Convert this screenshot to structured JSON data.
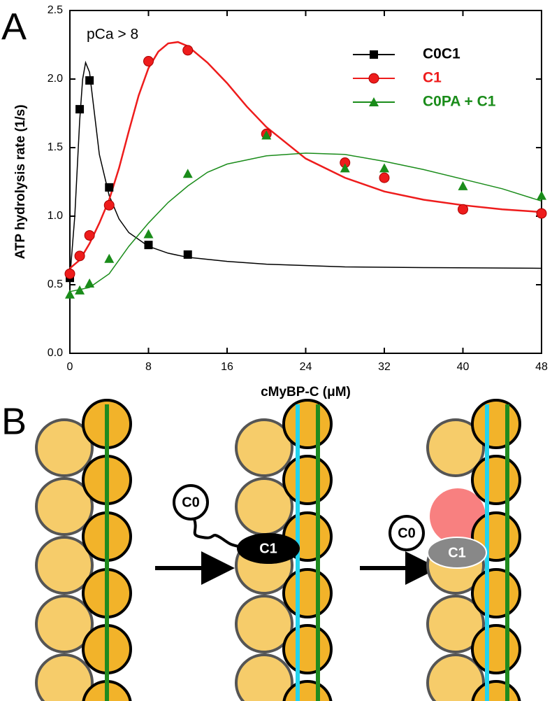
{
  "panel_labels": [
    "A",
    "B"
  ],
  "chart_data": {
    "type": "scatter",
    "annotation": "pCa > 8",
    "x_label": "cMyBP-C (μM)",
    "y_label": "ATP hydrolysis rate (1/s)",
    "xlim": [
      0,
      48
    ],
    "xticks": [
      0,
      8,
      16,
      24,
      32,
      40,
      48
    ],
    "ylim": [
      0,
      2.5
    ],
    "yticks": [
      {
        "value": 0,
        "label": "0.0"
      },
      0.5,
      {
        "value": 1,
        "label": "1.0"
      },
      1.5,
      {
        "value": 2,
        "label": "2.0"
      },
      2.5
    ],
    "legend": "upper right",
    "series": [
      {
        "name": "C0C1",
        "color": "#000000",
        "marker": "square",
        "x": [
          0,
          1,
          2,
          4,
          8,
          12
        ],
        "values": [
          0.55,
          1.78,
          1.99,
          1.21,
          0.79,
          0.72
        ],
        "fit_x": [
          0,
          0.5,
          1,
          1.3,
          1.6,
          2,
          2.5,
          3,
          4,
          5,
          6,
          8,
          10,
          12,
          16,
          20,
          28,
          36,
          48
        ],
        "fit_values": [
          0.55,
          1.0,
          1.7,
          2.0,
          2.12,
          2.05,
          1.75,
          1.45,
          1.15,
          0.98,
          0.88,
          0.78,
          0.73,
          0.7,
          0.67,
          0.65,
          0.63,
          0.625,
          0.62
        ]
      },
      {
        "name": "C1",
        "color": "#ee1c1c",
        "marker": "circle",
        "x": [
          0,
          1,
          2,
          4,
          8,
          12,
          20,
          28,
          32,
          40,
          48
        ],
        "values": [
          0.58,
          0.71,
          0.86,
          1.08,
          2.13,
          2.21,
          1.6,
          1.39,
          1.28,
          1.05,
          1.02
        ],
        "fit_x": [
          0,
          1,
          2,
          3,
          4,
          5,
          6,
          7,
          8,
          9,
          10,
          11,
          12,
          14,
          16,
          18,
          20,
          24,
          28,
          32,
          36,
          40,
          44,
          48
        ],
        "fit_values": [
          0.62,
          0.68,
          0.8,
          0.95,
          1.12,
          1.35,
          1.62,
          1.88,
          2.08,
          2.2,
          2.26,
          2.27,
          2.24,
          2.12,
          1.97,
          1.8,
          1.65,
          1.42,
          1.28,
          1.18,
          1.12,
          1.08,
          1.05,
          1.03
        ]
      },
      {
        "name": "C0PA + C1",
        "color": "#1a8c1a",
        "marker": "triangle",
        "x": [
          0,
          1,
          2,
          4,
          8,
          12,
          20,
          28,
          32,
          40,
          48
        ],
        "values": [
          0.43,
          0.46,
          0.51,
          0.69,
          0.87,
          1.31,
          1.59,
          1.35,
          1.35,
          1.22,
          1.15
        ],
        "fit_x": [
          0,
          2,
          4,
          6,
          8,
          10,
          12,
          14,
          16,
          20,
          24,
          28,
          32,
          36,
          40,
          44,
          48
        ],
        "fit_values": [
          0.45,
          0.48,
          0.58,
          0.78,
          0.95,
          1.1,
          1.22,
          1.32,
          1.38,
          1.44,
          1.46,
          1.45,
          1.4,
          1.34,
          1.27,
          1.2,
          1.11
        ]
      }
    ]
  },
  "diagram": {
    "labels": [
      "C0",
      "C1",
      "C0",
      "C1"
    ]
  }
}
